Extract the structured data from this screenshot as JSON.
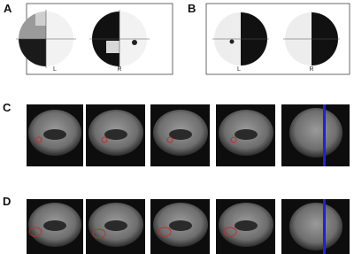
{
  "panels": [
    {
      "label": "A",
      "fields": [
        {
          "label": "L"
        },
        {
          "label": "R"
        }
      ]
    },
    {
      "label": "B",
      "fields": [
        {
          "label": "L"
        },
        {
          "label": "R"
        }
      ]
    },
    {
      "label": "C"
    },
    {
      "label": "D"
    }
  ]
}
